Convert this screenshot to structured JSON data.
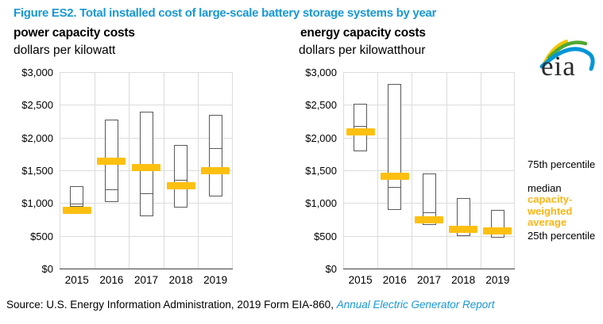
{
  "title": "Figure ES2. Total installed cost of large-scale battery storage systems by year",
  "logo": {
    "text": "eia"
  },
  "legend": {
    "p75": "75th percentile",
    "median": "median",
    "cwa": "capacity-weighted average",
    "p25": "25th percentile"
  },
  "source": {
    "prefix": "Source: U.S. Energy Information Administration, 2019 Form EIA-860, ",
    "link": "Annual Electric Generator Report"
  },
  "colors": {
    "title_blue": "#1898D5",
    "marker_yellow": "#FDC011",
    "legend_yellow": "#FDB515",
    "box_border": "#595959",
    "gridline": "#DCDCDC",
    "axis": "#404040"
  },
  "chart_data": [
    {
      "type": "bar",
      "variant": "floating-box-with-median-and-average-marker",
      "title": "power capacity costs",
      "subtitle": "dollars per kilowatt",
      "categories": [
        "2015",
        "2016",
        "2017",
        "2018",
        "2019"
      ],
      "ylim": [
        0,
        3000
      ],
      "ytick_step": 500,
      "ytick_labels": [
        "$0",
        "$500",
        "$1,000",
        "$1,500",
        "$2,000",
        "$2,500",
        "$3,000"
      ],
      "grid": true,
      "series": [
        {
          "name": "25th percentile",
          "values": [
            940,
            1020,
            800,
            930,
            1100
          ]
        },
        {
          "name": "median",
          "values": [
            990,
            1210,
            1150,
            1350,
            1840
          ]
        },
        {
          "name": "75th percentile",
          "values": [
            1260,
            2270,
            2400,
            1890,
            2350
          ]
        },
        {
          "name": "capacity-weighted average",
          "values": [
            890,
            1640,
            1540,
            1270,
            1500
          ]
        }
      ]
    },
    {
      "type": "bar",
      "variant": "floating-box-with-median-and-average-marker",
      "title": "energy capacity costs",
      "subtitle": "dollars per kilowatthour",
      "categories": [
        "2015",
        "2016",
        "2017",
        "2018",
        "2019"
      ],
      "ylim": [
        0,
        3000
      ],
      "ytick_step": 500,
      "ytick_labels": [
        "$0",
        "$500",
        "$1,000",
        "$1,500",
        "$2,000",
        "$2,500",
        "$3,000"
      ],
      "grid": true,
      "series": [
        {
          "name": "25th percentile",
          "values": [
            1790,
            900,
            670,
            500,
            470
          ]
        },
        {
          "name": "median",
          "values": [
            2180,
            1240,
            860,
            650,
            580
          ]
        },
        {
          "name": "75th percentile",
          "values": [
            2520,
            2820,
            1450,
            1080,
            890
          ]
        },
        {
          "name": "capacity-weighted average",
          "values": [
            2090,
            1410,
            750,
            600,
            575
          ]
        }
      ]
    }
  ]
}
